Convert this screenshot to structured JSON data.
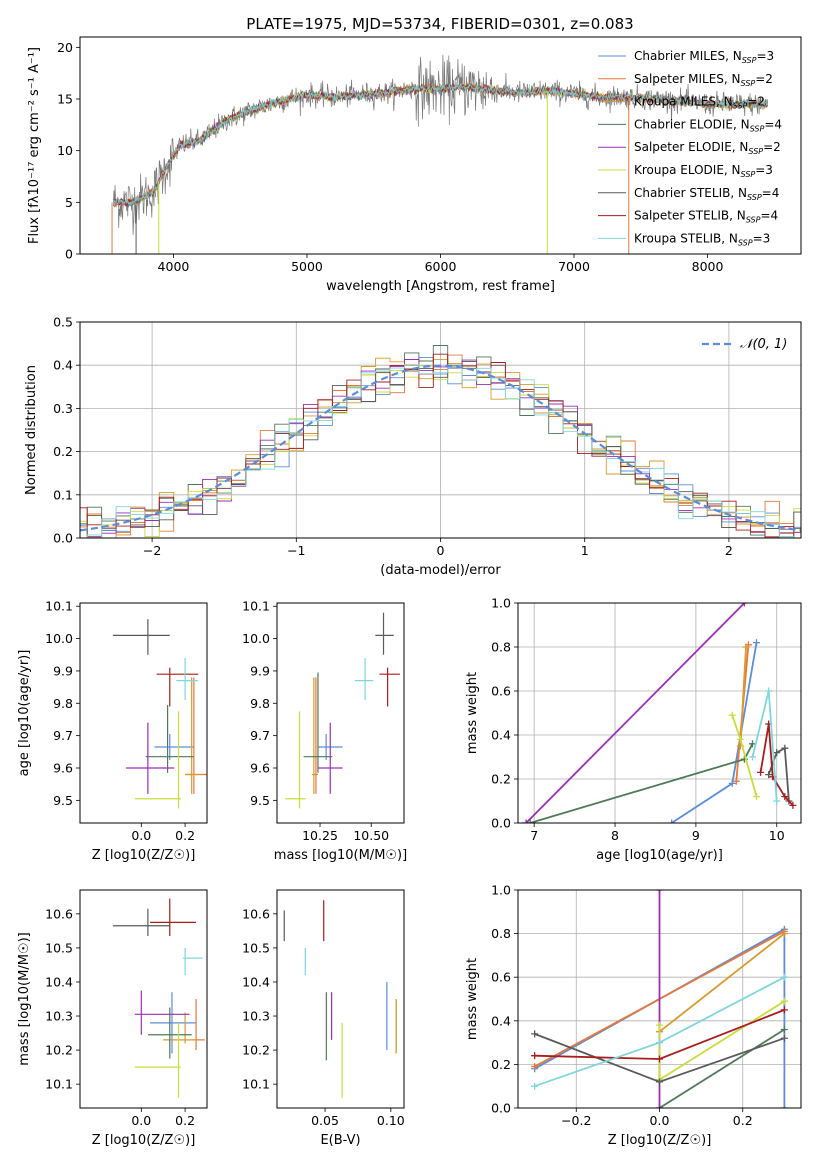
{
  "figure": {
    "title": "PLATE=1975, MJD=53734, FIBERID=0301, z=0.083"
  },
  "colors": {
    "series": [
      "#5b8dd9",
      "#e8773a",
      "#d99a2b",
      "#4f7a57",
      "#9a2fb5",
      "#c8dc3a",
      "#5a5a5a",
      "#a81d1d",
      "#7fd6dc"
    ]
  },
  "chart_data": [
    {
      "id": "spectrum",
      "type": "line",
      "title": "PLATE=1975, MJD=53734, FIBERID=0301, z=0.083",
      "xlabel": "wavelength [Angstrom, rest frame]",
      "ylabel": "Flux [fλ10⁻¹⁷ erg cm⁻² s⁻¹ A⁻¹]",
      "xlim": [
        3300,
        8700
      ],
      "ylim": [
        0,
        21
      ],
      "xticks": [
        4000,
        5000,
        6000,
        7000,
        8000
      ],
      "yticks": [
        0,
        5,
        10,
        15,
        20
      ],
      "grid": false,
      "legend_position": "right",
      "legend": [
        "Chabrier MILES, N_SSP=3",
        "Salpeter MILES, N_SSP=2",
        "Kroupa MILES, N_SSP=2",
        "Chabrier ELODIE, N_SSP=4",
        "Salpeter ELODIE, N_SSP=2",
        "Kroupa ELODIE, N_SSP=3",
        "Chabrier STELIB, N_SSP=4",
        "Salpeter STELIB, N_SSP=4",
        "Kroupa STELIB, N_SSP=3"
      ],
      "continuum": {
        "x": [
          3550,
          3700,
          3850,
          3950,
          4050,
          4200,
          4400,
          4600,
          4800,
          5000,
          5200,
          5400,
          5600,
          5800,
          6000,
          6200,
          6400,
          6600,
          6800,
          7000,
          7200,
          7400,
          7600,
          7800,
          8000,
          8200,
          8400
        ],
        "y": [
          5.0,
          5.0,
          6.0,
          8.5,
          10.5,
          11.0,
          13.0,
          14.0,
          14.8,
          15.4,
          15.2,
          15.4,
          15.6,
          16.0,
          16.0,
          16.2,
          15.8,
          15.6,
          15.8,
          15.5,
          15.2,
          15.2,
          15.0,
          14.8,
          14.5,
          14.5,
          14.5
        ]
      }
    },
    {
      "id": "residuals",
      "type": "histogram",
      "xlabel": "(data-model)/error",
      "ylabel": "Normed distribution",
      "xlim": [
        -2.5,
        2.5
      ],
      "ylim": [
        0,
        0.5
      ],
      "xticks": [
        -2,
        -1,
        0,
        1,
        2
      ],
      "yticks": [
        0.0,
        0.1,
        0.2,
        0.3,
        0.4,
        0.5
      ],
      "grid": true,
      "legend_position": "top-right",
      "legend": [
        "𝒩(0, 1)"
      ],
      "bin_width": 0.1,
      "reference_curve": "normal(0,1)"
    },
    {
      "id": "age-vs-Z",
      "type": "scatter",
      "xlabel": "Z [log10(Z/Z☉)]",
      "ylabel": "age  [log10(age/yr)]",
      "xlim": [
        -0.28,
        0.3
      ],
      "ylim": [
        9.43,
        10.11
      ],
      "xticks": [
        0.0,
        0.2
      ],
      "yticks": [
        9.5,
        9.6,
        9.7,
        9.8,
        9.9,
        10.0,
        10.1
      ],
      "points": [
        {
          "x": 0.13,
          "y": 9.665,
          "xerr": [
            0.07,
            0.11
          ],
          "yerr": [
            0.04,
            0.04
          ]
        },
        {
          "x": 0.24,
          "y": 9.58,
          "xerr": [
            0.04,
            0.06
          ],
          "yerr": [
            0.06,
            0.3
          ]
        },
        {
          "x": 0.23,
          "y": 9.58,
          "xerr": [
            0.03,
            0.05
          ],
          "yerr": [
            0.06,
            0.3
          ]
        },
        {
          "x": 0.12,
          "y": 9.635,
          "xerr": [
            0.1,
            0.12
          ],
          "yerr": [
            0.05,
            0.16
          ]
        },
        {
          "x": 0.03,
          "y": 9.6,
          "xerr": [
            0.1,
            0.12
          ],
          "yerr": [
            0.08,
            0.14
          ]
        },
        {
          "x": 0.17,
          "y": 9.505,
          "xerr": [
            0.2,
            0.01
          ],
          "yerr": [
            0.03,
            0.27
          ]
        },
        {
          "x": 0.03,
          "y": 10.01,
          "xerr": [
            0.16,
            0.1
          ],
          "yerr": [
            0.06,
            0.05
          ]
        },
        {
          "x": 0.13,
          "y": 9.89,
          "xerr": [
            0.06,
            0.13
          ],
          "yerr": [
            0.1,
            0.02
          ]
        },
        {
          "x": 0.2,
          "y": 9.87,
          "xerr": [
            0.04,
            0.06
          ],
          "yerr": [
            0.06,
            0.07
          ]
        }
      ]
    },
    {
      "id": "age-vs-mass",
      "type": "scatter",
      "xlabel": "mass [log10(M/M☉)]",
      "ylabel": "",
      "xlim": [
        10.04,
        10.66
      ],
      "ylim": [
        9.43,
        10.11
      ],
      "xticks": [
        10.25,
        10.5
      ],
      "yticks": [
        9.5,
        9.6,
        9.7,
        9.8,
        9.9,
        10.0,
        10.1
      ],
      "points": [
        {
          "x": 10.28,
          "y": 9.665,
          "xerr": [
            0.04,
            0.08
          ],
          "yerr": [
            0.04,
            0.04
          ]
        },
        {
          "x": 10.23,
          "y": 9.58,
          "xerr": [
            0.01,
            0.01
          ],
          "yerr": [
            0.06,
            0.3
          ]
        },
        {
          "x": 10.22,
          "y": 9.58,
          "xerr": [
            0.01,
            0.01
          ],
          "yerr": [
            0.06,
            0.3
          ]
        },
        {
          "x": 10.24,
          "y": 9.635,
          "xerr": [
            0.07,
            0.07
          ],
          "yerr": [
            0.05,
            0.26
          ]
        },
        {
          "x": 10.3,
          "y": 9.6,
          "xerr": [
            0.06,
            0.06
          ],
          "yerr": [
            0.08,
            0.14
          ]
        },
        {
          "x": 10.15,
          "y": 9.505,
          "xerr": [
            0.07,
            0.03
          ],
          "yerr": [
            0.03,
            0.27
          ]
        },
        {
          "x": 10.56,
          "y": 10.01,
          "xerr": [
            0.04,
            0.05
          ],
          "yerr": [
            0.06,
            0.07
          ]
        },
        {
          "x": 10.58,
          "y": 9.89,
          "xerr": [
            0.04,
            0.06
          ],
          "yerr": [
            0.1,
            0.02
          ]
        },
        {
          "x": 10.47,
          "y": 9.87,
          "xerr": [
            0.05,
            0.04
          ],
          "yerr": [
            0.06,
            0.07
          ]
        }
      ]
    },
    {
      "id": "weight-vs-age",
      "type": "line",
      "xlabel": "age  [log10(age/yr)]",
      "ylabel": "mass weight",
      "xlim": [
        6.8,
        10.3
      ],
      "ylim": [
        0,
        1
      ],
      "xticks": [
        7,
        8,
        9,
        10
      ],
      "yticks": [
        0.0,
        0.2,
        0.4,
        0.6,
        0.8,
        1.0
      ],
      "grid": true,
      "series": [
        {
          "x": [
            8.7,
            9.45,
            9.75
          ],
          "y": [
            0.0,
            0.18,
            0.82
          ]
        },
        {
          "x": [
            9.5,
            9.65
          ],
          "y": [
            0.19,
            0.81
          ]
        },
        {
          "x": [
            9.55,
            9.62
          ],
          "y": [
            0.35,
            0.8
          ]
        },
        {
          "x": [
            6.95,
            9.6,
            9.7
          ],
          "y": [
            0.0,
            0.29,
            0.36
          ]
        },
        {
          "x": [
            6.9,
            9.6
          ],
          "y": [
            0.0,
            1.0
          ]
        },
        {
          "x": [
            9.45,
            9.55,
            9.75
          ],
          "y": [
            0.49,
            0.38,
            0.12
          ]
        },
        {
          "x": [
            9.9,
            10.0,
            10.1,
            10.15
          ],
          "y": [
            0.22,
            0.32,
            0.34,
            0.1
          ]
        },
        {
          "x": [
            9.8,
            9.9,
            9.95,
            10.1,
            10.2
          ],
          "y": [
            0.23,
            0.45,
            0.21,
            0.12,
            0.08
          ]
        },
        {
          "x": [
            9.7,
            9.9,
            10.0
          ],
          "y": [
            0.3,
            0.6,
            0.1
          ]
        }
      ]
    },
    {
      "id": "mass-vs-Z",
      "type": "scatter",
      "xlabel": "Z [log10(Z/Z☉)]",
      "ylabel": "mass [log10(M/M☉)]",
      "xlim": [
        -0.28,
        0.3
      ],
      "ylim": [
        10.03,
        10.67
      ],
      "xticks": [
        0.0,
        0.2
      ],
      "yticks": [
        10.1,
        10.2,
        10.3,
        10.4,
        10.5,
        10.6
      ],
      "points": [
        {
          "x": 0.14,
          "y": 10.28,
          "xerr": [
            0.1,
            0.11
          ],
          "yerr": [
            0.09,
            0.09
          ]
        },
        {
          "x": 0.25,
          "y": 10.23,
          "xerr": [
            0.02,
            0.04
          ],
          "yerr": [
            0.03,
            0.12
          ]
        },
        {
          "x": 0.2,
          "y": 10.23,
          "xerr": [
            0.1,
            0.06
          ],
          "yerr": [
            0.01,
            0.08
          ]
        },
        {
          "x": 0.13,
          "y": 10.245,
          "xerr": [
            0.1,
            0.1
          ],
          "yerr": [
            0.07,
            0.08
          ]
        },
        {
          "x": 0.0,
          "y": 10.305,
          "xerr": [
            0.03,
            0.22
          ],
          "yerr": [
            0.06,
            0.07
          ]
        },
        {
          "x": 0.17,
          "y": 10.15,
          "xerr": [
            0.2,
            0.01
          ],
          "yerr": [
            0.09,
            0.13
          ]
        },
        {
          "x": 0.03,
          "y": 10.565,
          "xerr": [
            0.16,
            0.1
          ],
          "yerr": [
            0.03,
            0.05
          ]
        },
        {
          "x": 0.13,
          "y": 10.575,
          "xerr": [
            0.09,
            0.12
          ],
          "yerr": [
            0.04,
            0.07
          ]
        },
        {
          "x": 0.2,
          "y": 10.47,
          "xerr": [
            0.01,
            0.08
          ],
          "yerr": [
            0.05,
            0.03
          ]
        }
      ]
    },
    {
      "id": "mass-vs-EBV",
      "type": "scatter",
      "xlabel": "E(B-V)",
      "ylabel": "",
      "xlim": [
        0.0135,
        0.11
      ],
      "ylim": [
        10.03,
        10.67
      ],
      "xticks": [
        0.05,
        0.1
      ],
      "yticks": [
        10.1,
        10.2,
        10.3,
        10.4,
        10.5,
        10.6
      ],
      "points": [
        {
          "x": 0.097,
          "y": 10.3,
          "yerr": [
            0.1,
            0.1
          ]
        },
        {
          "x": 0.104,
          "y": 10.27,
          "yerr": [
            0.08,
            0.08
          ]
        },
        {
          "x": 0.104,
          "y": 10.27,
          "yerr": [
            0.08,
            0.08
          ]
        },
        {
          "x": 0.051,
          "y": 10.27,
          "yerr": [
            0.1,
            0.1
          ]
        },
        {
          "x": 0.055,
          "y": 10.3,
          "yerr": [
            0.07,
            0.07
          ]
        },
        {
          "x": 0.063,
          "y": 10.17,
          "yerr": [
            0.11,
            0.11
          ]
        },
        {
          "x": 0.019,
          "y": 10.565,
          "yerr": [
            0.045,
            0.045
          ]
        },
        {
          "x": 0.049,
          "y": 10.58,
          "yerr": [
            0.06,
            0.06
          ]
        },
        {
          "x": 0.035,
          "y": 10.46,
          "yerr": [
            0.04,
            0.04
          ]
        }
      ]
    },
    {
      "id": "weight-vs-Z",
      "type": "line",
      "xlabel": "Z [log10(Z/Z☉)]",
      "ylabel": "mass weight",
      "xlim": [
        -0.34,
        0.34
      ],
      "ylim": [
        0,
        1
      ],
      "xticks": [
        -0.2,
        0.0,
        0.2
      ],
      "yticks": [
        0.0,
        0.2,
        0.4,
        0.6,
        0.8,
        1.0
      ],
      "grid": true,
      "series": [
        {
          "x": [
            -0.3,
            0.3,
            0.3
          ],
          "y": [
            0.18,
            0.82,
            0.0
          ]
        },
        {
          "x": [
            -0.3,
            0.3
          ],
          "y": [
            0.19,
            0.81
          ]
        },
        {
          "x": [
            0.0,
            0.3
          ],
          "y": [
            0.35,
            0.8
          ]
        },
        {
          "x": [
            0.0,
            0.3
          ],
          "y": [
            0.0,
            0.36
          ]
        },
        {
          "x": [
            0.0,
            0.0
          ],
          "y": [
            0.0,
            1.0
          ]
        },
        {
          "x": [
            0.0,
            0.0,
            0.3
          ],
          "y": [
            0.38,
            0.13,
            0.49
          ]
        },
        {
          "x": [
            -0.3,
            0.0,
            0.3
          ],
          "y": [
            0.34,
            0.12,
            0.32
          ]
        },
        {
          "x": [
            -0.3,
            0.0,
            0.3
          ],
          "y": [
            0.24,
            0.225,
            0.45
          ]
        },
        {
          "x": [
            -0.3,
            0.0,
            0.3
          ],
          "y": [
            0.1,
            0.3,
            0.6
          ]
        }
      ]
    }
  ]
}
